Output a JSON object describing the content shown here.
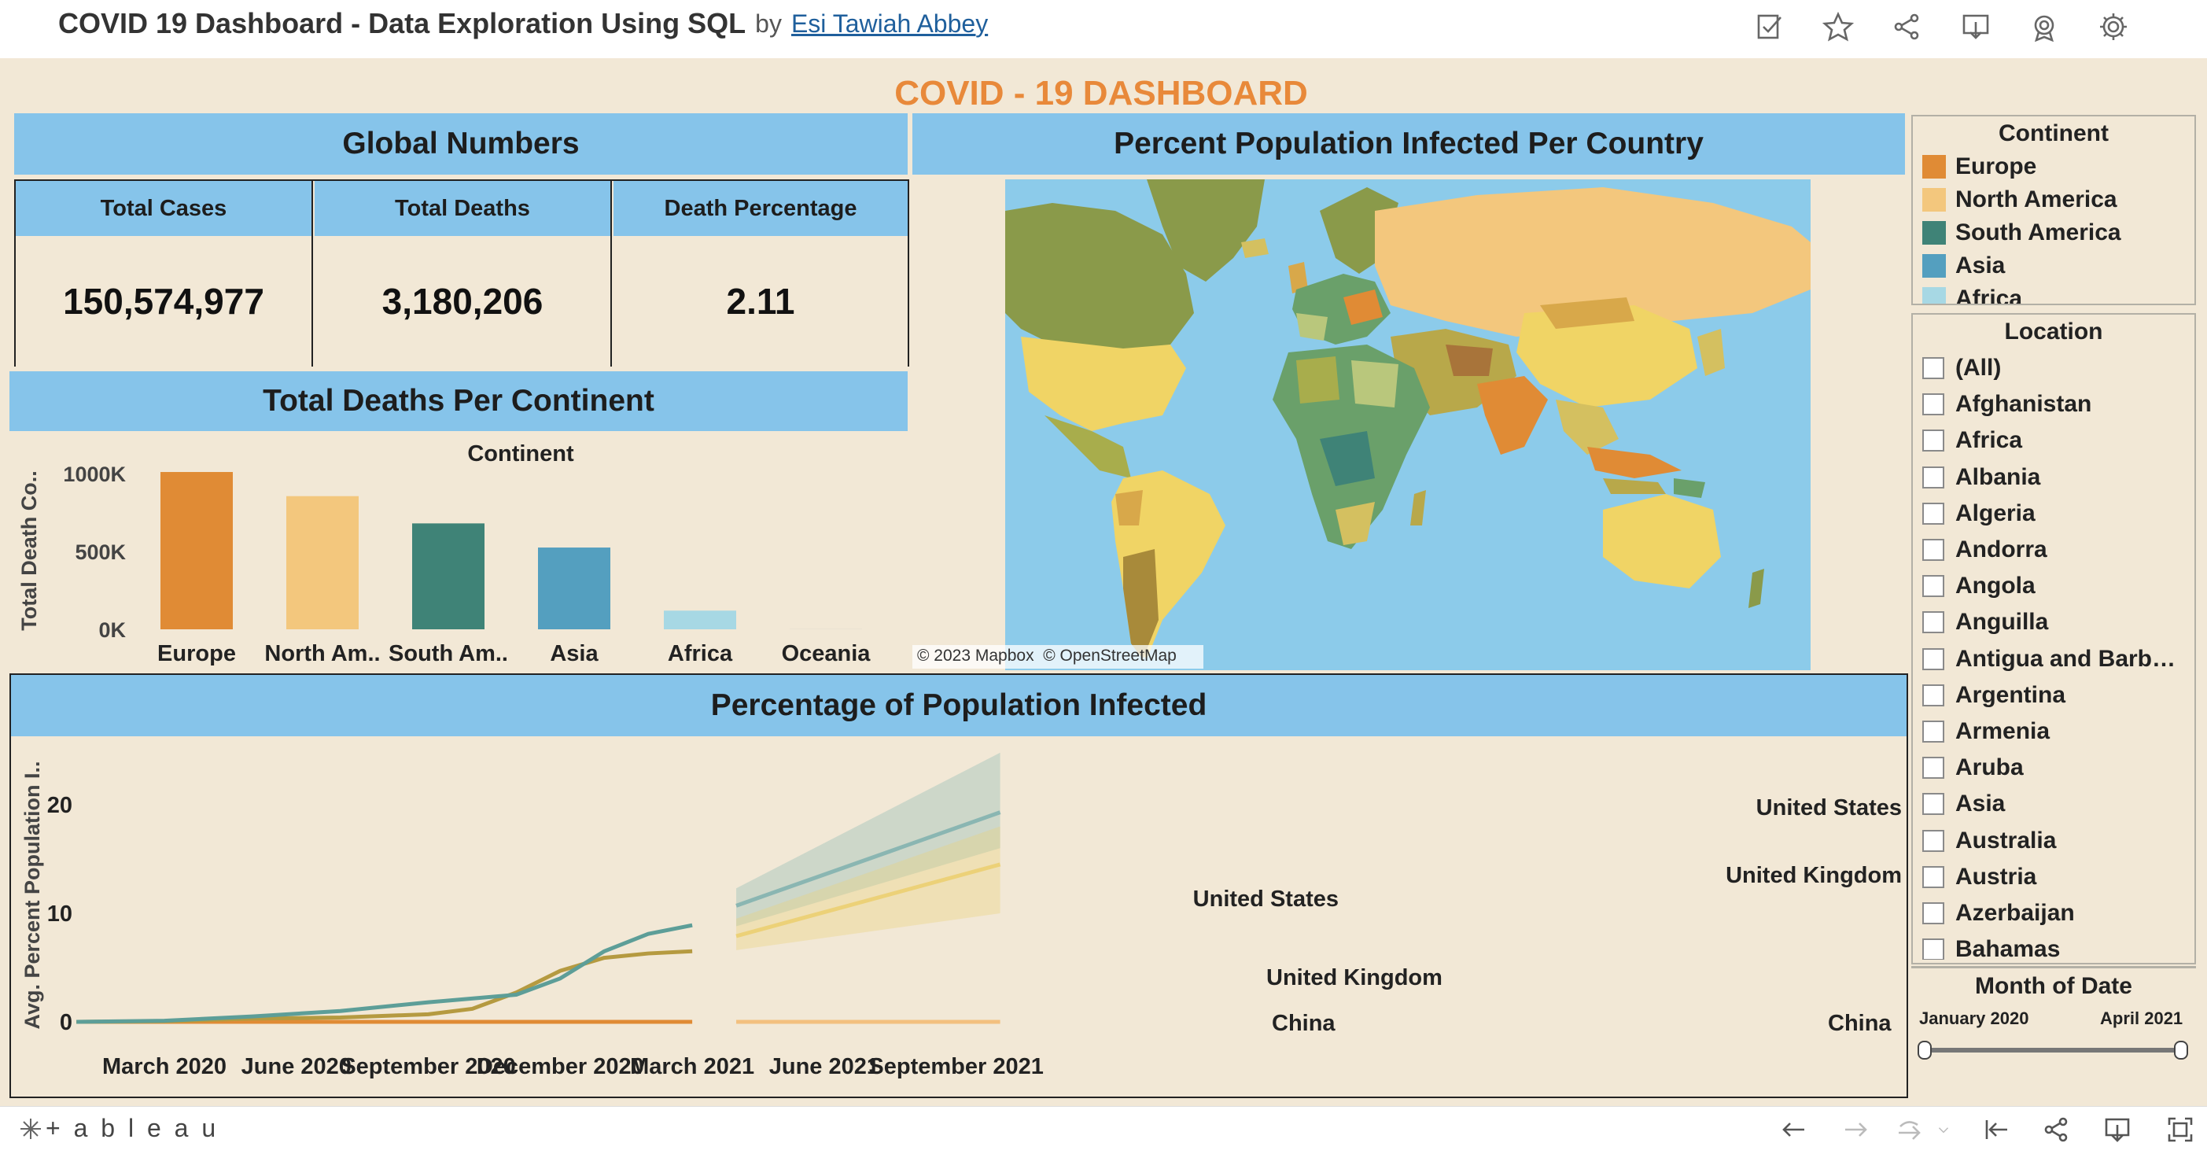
{
  "toolbar": {
    "title": "COVID 19 Dashboard - Data Exploration Using SQL",
    "by": "by",
    "author": "Esi Tawiah Abbey",
    "icons": [
      "edit-icon",
      "star-icon",
      "share-icon",
      "download-icon",
      "badge-icon",
      "gear-icon"
    ]
  },
  "dashboard": {
    "title": "COVID - 19 DASHBOARD",
    "title_color": "#e8893a",
    "background": "#f2e8d6",
    "header_color": "#86c4ea"
  },
  "global_numbers": {
    "title": "Global Numbers",
    "items": [
      {
        "label": "Total Cases",
        "value": "150,574,977"
      },
      {
        "label": "Total Deaths",
        "value": "3,180,206"
      },
      {
        "label": "Death Percentage",
        "value": "2.11"
      }
    ]
  },
  "deaths_chart": {
    "title": "Total Deaths Per Continent",
    "chart_data": {
      "type": "bar",
      "title": "Continent",
      "ylabel": "Total Death Co..",
      "categories": [
        "Europe",
        "North Am..",
        "South Am..",
        "Asia",
        "Africa",
        "Oceania"
      ],
      "values": [
        1010000,
        855000,
        680000,
        525000,
        120000,
        1000
      ],
      "colors": [
        "#e08b35",
        "#f3c77d",
        "#3f8377",
        "#549fbf",
        "#a7d8e4",
        "#c8c8c8"
      ],
      "ylim": [
        0,
        1000000
      ],
      "yticks": [
        0,
        500000,
        1000000
      ],
      "ytick_labels": [
        "0K",
        "500K",
        "1000K"
      ]
    }
  },
  "map": {
    "title": "Percent Population Infected Per Country",
    "attribution": "© 2023 Mapbox  © OpenStreetMap"
  },
  "legend_continent": {
    "title": "Continent",
    "items": [
      {
        "label": "Europe",
        "color": "#e08b35"
      },
      {
        "label": "North America",
        "color": "#f3c77d"
      },
      {
        "label": "South America",
        "color": "#3f8377"
      },
      {
        "label": "Asia",
        "color": "#549fbf"
      },
      {
        "label": "Africa",
        "color": "#a7d8e4"
      }
    ]
  },
  "location_filter": {
    "title": "Location",
    "items": [
      "(All)",
      "Afghanistan",
      "Africa",
      "Albania",
      "Algeria",
      "Andorra",
      "Angola",
      "Anguilla",
      "Antigua and Barb…",
      "Argentina",
      "Armenia",
      "Aruba",
      "Asia",
      "Australia",
      "Austria",
      "Azerbaijan",
      "Bahamas"
    ]
  },
  "date_filter": {
    "title": "Month of Date",
    "start": "January 2020",
    "end": "April 2021"
  },
  "line_chart": {
    "title": "Percentage of Population Infected",
    "chart_data": {
      "type": "line",
      "ylabel": "Avg. Percent Population I..",
      "ylim": [
        0,
        25
      ],
      "yticks": [
        0,
        10,
        20
      ],
      "xlim": [
        "2020-01",
        "2021-10"
      ],
      "xticks": [
        {
          "date": "2020-03",
          "label": "March 2020"
        },
        {
          "date": "2020-06",
          "label": "June 2020"
        },
        {
          "date": "2020-09",
          "label": "September 2020"
        },
        {
          "date": "2020-12",
          "label": "December 2020"
        },
        {
          "date": "2021-03",
          "label": "March 2021"
        },
        {
          "date": "2021-06",
          "label": "June 2021"
        },
        {
          "date": "2021-09",
          "label": "September 2021"
        }
      ],
      "series": [
        {
          "name": "United States",
          "color": "#5d9e98",
          "points": [
            [
              "2020-01",
              0
            ],
            [
              "2020-03",
              0.1
            ],
            [
              "2020-05",
              0.5
            ],
            [
              "2020-07",
              1.0
            ],
            [
              "2020-09",
              1.8
            ],
            [
              "2020-11",
              2.5
            ],
            [
              "2020-12",
              4.0
            ],
            [
              "2021-01",
              6.5
            ],
            [
              "2021-02",
              8.1
            ],
            [
              "2021-03",
              8.9
            ]
          ]
        },
        {
          "name": "United Kingdom",
          "color": "#b59a40",
          "points": [
            [
              "2020-01",
              0
            ],
            [
              "2020-03",
              0.05
            ],
            [
              "2020-05",
              0.3
            ],
            [
              "2020-07",
              0.4
            ],
            [
              "2020-09",
              0.7
            ],
            [
              "2020-10",
              1.2
            ],
            [
              "2020-11",
              2.7
            ],
            [
              "2020-12",
              4.7
            ],
            [
              "2021-01",
              5.9
            ],
            [
              "2021-02",
              6.3
            ],
            [
              "2021-03",
              6.5
            ]
          ]
        },
        {
          "name": "China",
          "color": "#e08b35",
          "points": [
            [
              "2020-01",
              0
            ],
            [
              "2021-03",
              0
            ]
          ]
        }
      ],
      "forecast": [
        {
          "name": "United States",
          "color": "#8ab6b2",
          "points": [
            [
              "2021-04",
              10.7
            ],
            [
              "2021-10",
              19.3
            ]
          ],
          "band_low": [
            8.8,
            16.0
          ],
          "band_high": [
            12.3,
            24.8
          ]
        },
        {
          "name": "United Kingdom",
          "color": "#ecd178",
          "points": [
            [
              "2021-04",
              7.9
            ],
            [
              "2021-10",
              14.5
            ]
          ],
          "band_low": [
            6.6,
            10.0
          ],
          "band_high": [
            9.5,
            18.0
          ]
        },
        {
          "name": "China",
          "color": "#f3c07f",
          "points": [
            [
              "2021-04",
              0
            ],
            [
              "2021-10",
              0
            ]
          ],
          "band_low": [
            0,
            0
          ],
          "band_high": [
            0,
            0
          ]
        }
      ]
    }
  },
  "footer": {
    "brand": "+ a b l e a u",
    "icons": [
      "undo-icon",
      "redo-icon",
      "revert-icon",
      "reset-icon",
      "share-icon",
      "download-icon",
      "fullscreen-icon"
    ]
  }
}
